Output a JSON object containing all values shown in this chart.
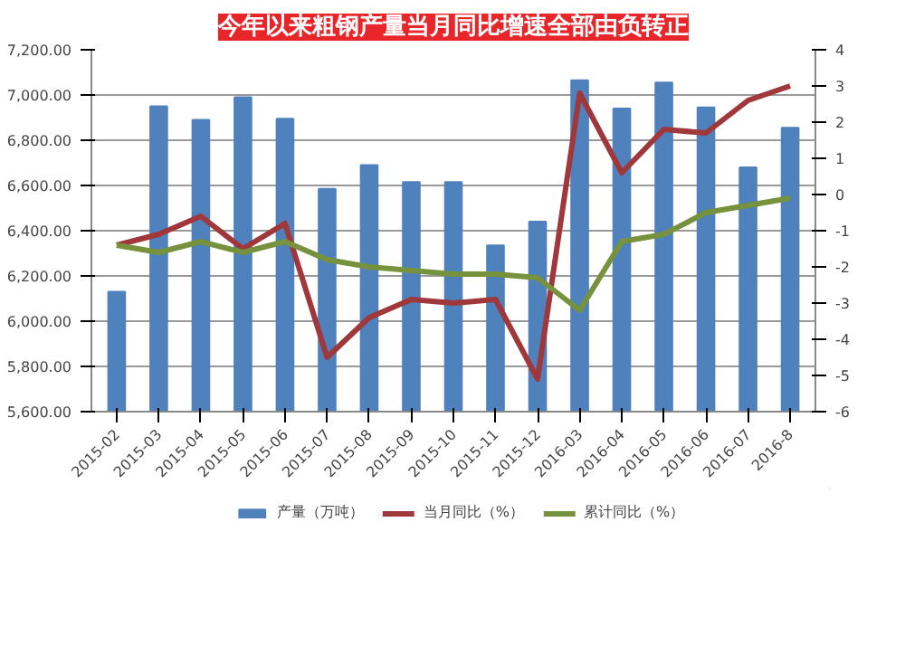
{
  "chart_data": {
    "type": "bar",
    "title": "今年以来粗钢产量当月同比增速全部由负转正",
    "categories": [
      "2015-02",
      "2015-03",
      "2015-04",
      "2015-05",
      "2015-06",
      "2015-07",
      "2015-08",
      "2015-09",
      "2015-10",
      "2015-11",
      "2015-12",
      "2016-03",
      "2016-04",
      "2016-05",
      "2016-06",
      "2016-07",
      "2016-8"
    ],
    "series": [
      {
        "name": "产量（万吨）",
        "type": "bar",
        "color": "#4f81bd",
        "values": [
          6130,
          6950,
          6890,
          6990,
          6895,
          6585,
          6690,
          6615,
          6615,
          6335,
          6440,
          7065,
          6940,
          7055,
          6945,
          6680,
          6855
        ]
      },
      {
        "name": "当月同比（%）",
        "type": "line",
        "axis": "y2",
        "color": "#a0373a",
        "values": [
          -1.4,
          -1.1,
          -0.6,
          -1.5,
          -0.8,
          -4.5,
          -3.4,
          -2.9,
          -3.0,
          -2.9,
          -5.1,
          2.8,
          0.6,
          1.8,
          1.7,
          2.6,
          3.0
        ]
      },
      {
        "name": "累计同比（%）",
        "type": "line",
        "axis": "y2",
        "color": "#76923c",
        "values": [
          -1.4,
          -1.6,
          -1.3,
          -1.6,
          -1.3,
          -1.8,
          -2.0,
          -2.1,
          -2.2,
          -2.2,
          -2.3,
          -3.2,
          -1.3,
          -1.1,
          -0.5,
          -0.3,
          -0.1
        ]
      }
    ],
    "ylim": [
      5600,
      7200
    ],
    "yticks": [
      {
        "value": 5600,
        "label": "5,600.00"
      },
      {
        "value": 5800,
        "label": "5,800.00"
      },
      {
        "value": 6000,
        "label": "6,000.00"
      },
      {
        "value": 6200,
        "label": "6,200.00"
      },
      {
        "value": 6400,
        "label": "6,400.00"
      },
      {
        "value": 6600,
        "label": "6,600.00"
      },
      {
        "value": 6800,
        "label": "6,800.00"
      },
      {
        "value": 7000,
        "label": "7,000.00"
      },
      {
        "value": 7200,
        "label": "7,200.00"
      }
    ],
    "y2lim": [
      -6,
      4
    ],
    "y2ticks": [
      -6,
      -5,
      -4,
      -3,
      -2,
      -1,
      0,
      1,
      2,
      3,
      4
    ],
    "grid": "y",
    "legend": "bottom",
    "line_style": "solid",
    "marker": "none"
  }
}
